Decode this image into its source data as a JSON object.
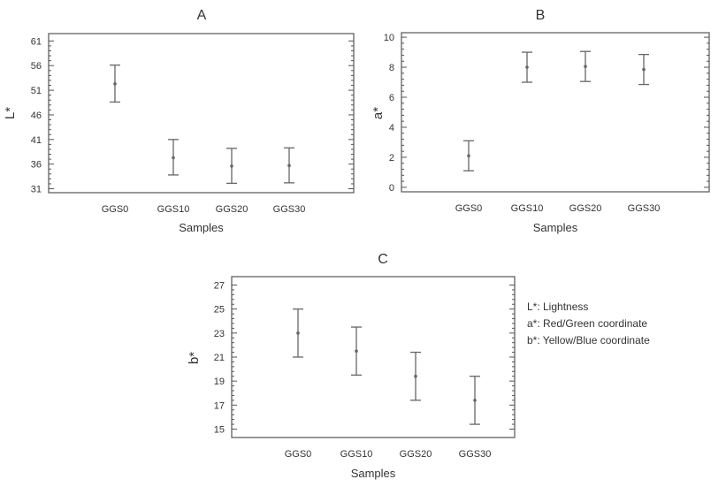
{
  "chart_data": [
    {
      "type": "errorbar",
      "title": "A",
      "xlabel": "Samples",
      "ylabel": "L*",
      "categories": [
        "GGS0",
        "GGS10",
        "GGS20",
        "GGS30"
      ],
      "means": [
        52.3,
        37.3,
        35.6,
        35.7
      ],
      "lower": [
        48.6,
        33.8,
        32.1,
        32.2
      ],
      "upper": [
        56.1,
        41.0,
        39.2,
        39.3
      ],
      "yticks": [
        31,
        36,
        41,
        46,
        51,
        56,
        61
      ],
      "ylim": [
        30.2,
        62.5
      ]
    },
    {
      "type": "errorbar",
      "title": "B",
      "xlabel": "Samples",
      "ylabel": "a*",
      "categories": [
        "GGS0",
        "GGS10",
        "GGS20",
        "GGS30"
      ],
      "means": [
        2.1,
        8.0,
        8.05,
        7.85
      ],
      "lower": [
        1.1,
        7.0,
        7.05,
        6.85
      ],
      "upper": [
        3.1,
        9.0,
        9.05,
        8.85
      ],
      "yticks": [
        0,
        2,
        4,
        6,
        8,
        10
      ],
      "ylim": [
        -0.3,
        10.3
      ]
    },
    {
      "type": "errorbar",
      "title": "C",
      "xlabel": "Samples",
      "ylabel": "b*",
      "categories": [
        "GGS0",
        "GGS10",
        "GGS20",
        "GGS30"
      ],
      "means": [
        23.0,
        21.5,
        19.4,
        17.4
      ],
      "lower": [
        21.0,
        19.5,
        17.4,
        15.4
      ],
      "upper": [
        25.0,
        23.5,
        21.4,
        19.4
      ],
      "yticks": [
        15,
        17,
        19,
        21,
        23,
        25,
        27
      ],
      "ylim": [
        14.3,
        27.7
      ]
    }
  ],
  "legend": [
    "L*:  Lightness",
    "a*:  Red/Green coordinate",
    "b*:  Yellow/Blue coordinate"
  ],
  "colors": {
    "bar": "#666666",
    "axis": "#555555"
  }
}
